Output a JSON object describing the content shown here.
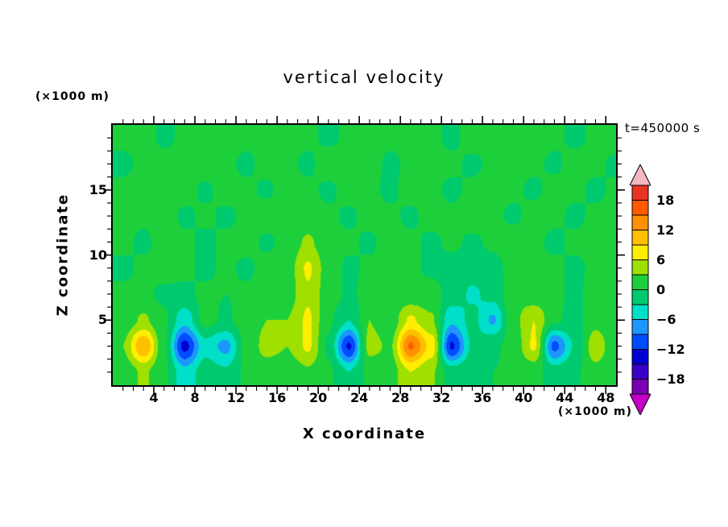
{
  "chart_data": {
    "type": "heatmap",
    "title": "vertical velocity",
    "time_label": "t=450000 s",
    "xlabel": "X coordinate",
    "ylabel": "Z coordinate",
    "x_unit_label": "(×1000 m)",
    "y_unit_label": "(×1000 m)",
    "xlim": [
      0,
      49
    ],
    "zlim": [
      0,
      20
    ],
    "x_ticks": [
      4,
      8,
      12,
      16,
      20,
      24,
      28,
      32,
      36,
      40,
      44,
      48
    ],
    "z_ticks": [
      5,
      10,
      15
    ],
    "minor_tick_step": 1,
    "contour_interval": 3,
    "x": [
      1,
      3,
      5,
      7,
      9,
      11,
      13,
      15,
      17,
      19,
      21,
      23,
      25,
      27,
      29,
      31,
      33,
      35,
      37,
      39,
      41,
      43,
      45,
      47,
      49
    ],
    "z": [
      1,
      3,
      5,
      7,
      9,
      11,
      13,
      15,
      17,
      19
    ],
    "values": [
      [
        1,
        3.5,
        0.5,
        -5,
        -1.5,
        -2.5,
        0.5,
        1.5,
        1,
        2.5,
        0.5,
        -3,
        1,
        1.5,
        6,
        3.5,
        -1.5,
        -0.5,
        0,
        0.5,
        1,
        -1.5,
        -0.5,
        2,
        0.5
      ],
      [
        3,
        12,
        0.5,
        -13,
        -4,
        -7,
        1,
        4,
        3,
        6.5,
        -0.5,
        -12.5,
        4,
        2.5,
        15.5,
        8,
        -12.5,
        -2.5,
        -0.5,
        1,
        6.5,
        -10,
        -2.5,
        5,
        0.5
      ],
      [
        1,
        3.5,
        0.5,
        -5,
        1,
        -0.5,
        1.5,
        3,
        3,
        6.5,
        0.5,
        -3,
        3,
        1,
        6.5,
        3.5,
        -5.5,
        -2,
        -6.5,
        2,
        6,
        0.5,
        -1,
        2,
        0.5
      ],
      [
        0.5,
        0.5,
        -0.5,
        -0.5,
        0.5,
        0,
        0.5,
        1,
        1.5,
        5.5,
        1.5,
        -0.5,
        1,
        0.5,
        1,
        1,
        -1,
        -3.5,
        -2,
        2,
        1,
        0.5,
        -0.5,
        1,
        0
      ],
      [
        -0.5,
        0.5,
        1,
        0.5,
        -0.5,
        0.5,
        -0.5,
        1,
        1.5,
        6.5,
        1.5,
        -0.5,
        0.5,
        1,
        0.5,
        -0.5,
        -1,
        -1.5,
        -1,
        1,
        0.5,
        0.5,
        -0.5,
        0.5,
        0
      ],
      [
        0.5,
        -0.5,
        1,
        0.5,
        -0.5,
        0.5,
        1,
        -0.5,
        1,
        3.5,
        1,
        0.5,
        -0.5,
        1.5,
        0.5,
        -0.5,
        0.5,
        -0.5,
        0.5,
        1.5,
        0.5,
        -0.5,
        0.5,
        1,
        0.5
      ],
      [
        1,
        0.5,
        1.5,
        -0.5,
        0.5,
        -0.5,
        0.5,
        1.5,
        0.5,
        1,
        0.5,
        -0.5,
        1,
        0.5,
        -0.5,
        1,
        0.5,
        1.5,
        0.5,
        -0.5,
        1,
        0.5,
        -0.5,
        0.5,
        1
      ],
      [
        0.5,
        1.5,
        0.5,
        1,
        -0.5,
        1,
        0.5,
        -0.5,
        1.5,
        0.5,
        -0.5,
        1,
        0.5,
        -0.5,
        1,
        0.5,
        -0.5,
        0.5,
        1.5,
        0.5,
        -0.5,
        1,
        0.5,
        -0.5,
        0.5
      ],
      [
        -0.5,
        0.5,
        1,
        0.5,
        1.5,
        0.5,
        -0.5,
        1,
        0.5,
        -0.5,
        1.5,
        0.5,
        1,
        -0.5,
        0.5,
        1.5,
        0.5,
        -0.5,
        0.5,
        1,
        0.5,
        -0.5,
        1,
        0.5,
        -0.5
      ],
      [
        0.5,
        1,
        -0.5,
        0.5,
        0.5,
        1.5,
        0.5,
        0.5,
        1,
        0.5,
        -0.5,
        0.5,
        1.5,
        0.5,
        1,
        0.5,
        -0.5,
        1,
        0.5,
        0.5,
        1.5,
        0.5,
        -0.5,
        0.5,
        1
      ]
    ],
    "colorbar": {
      "min": -21,
      "max": 21,
      "step": 3,
      "band_colors": [
        "#7a00b4",
        "#3a00c8",
        "#0000d2",
        "#004cff",
        "#1e96ff",
        "#00e0c8",
        "#00ca6e",
        "#1ecf3c",
        "#9fe000",
        "#ffee00",
        "#ffc000",
        "#ff9000",
        "#ff5a00",
        "#e93323"
      ],
      "arrow_top_color": "#f2b7c0",
      "arrow_bottom_color": "#c400c8",
      "tick_values": [
        18,
        12,
        6,
        0,
        -6,
        -12,
        -18
      ],
      "tick_labels": [
        "18",
        "12",
        "6",
        "0",
        "−6",
        "−12",
        "−18"
      ]
    }
  }
}
